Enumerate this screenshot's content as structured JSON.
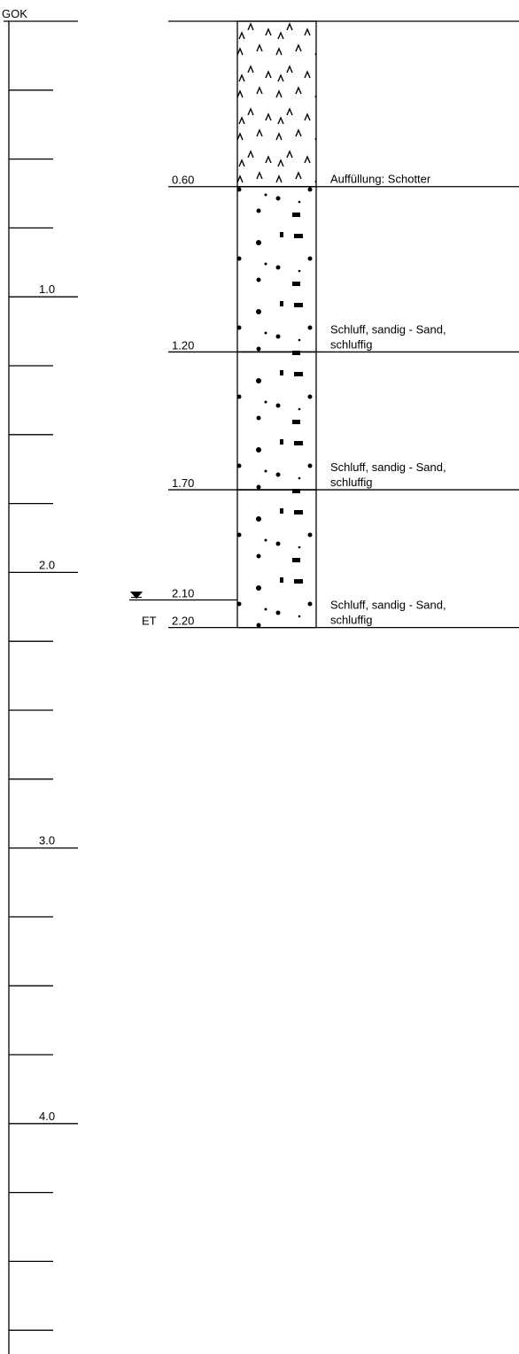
{
  "scale": {
    "labels": [
      "GOK",
      "1.0",
      "2.0",
      "3.0",
      "4.0"
    ]
  },
  "layers": [
    {
      "depth": "0.60",
      "description": [
        "Auffüllung: Schotter"
      ]
    },
    {
      "depth": "1.20",
      "description": [
        "Schluff, sandig - Sand,",
        "schluffig"
      ]
    },
    {
      "depth": "1.70",
      "description": [
        "Schluff, sandig - Sand,",
        "schluffig"
      ]
    },
    {
      "depth": "2.20",
      "description": [
        "Schluff, sandig - Sand,",
        "schluffig"
      ]
    }
  ],
  "water_level": {
    "depth": "2.10"
  },
  "end": {
    "label": "ET"
  }
}
